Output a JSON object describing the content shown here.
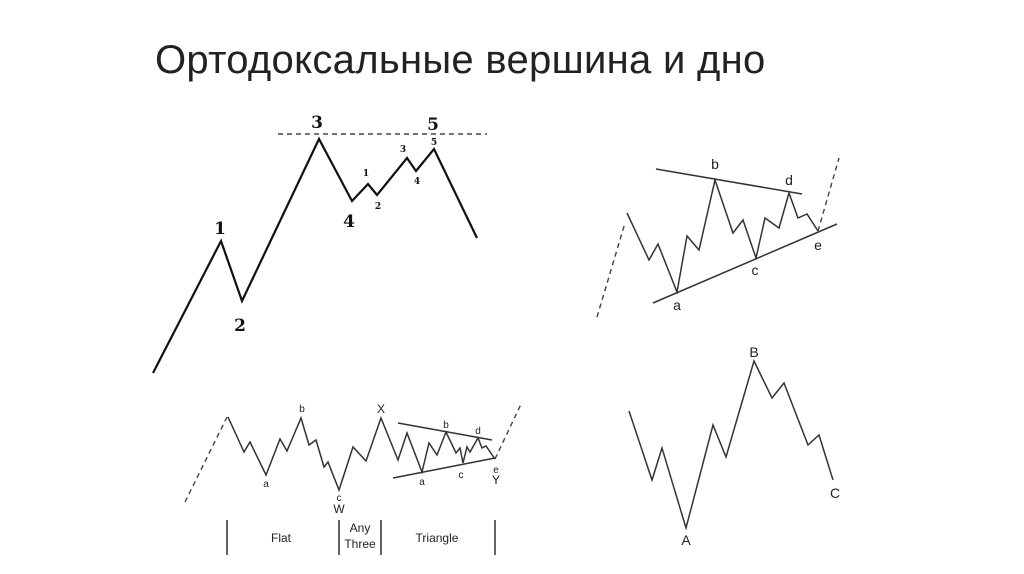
{
  "title": "Ортодоксальные вершина и дно",
  "impulse_top": {
    "labels": {
      "w1": "1",
      "w2": "2",
      "w3": "3",
      "w4": "4",
      "w5": "5",
      "s1": "1",
      "s2": "2",
      "s3": "3",
      "s4": "4",
      "s5": "5"
    }
  },
  "triangle": {
    "labels": {
      "a": "a",
      "b": "b",
      "c": "c",
      "d": "d",
      "e": "e"
    }
  },
  "zigzag": {
    "labels": {
      "A": "A",
      "B": "B",
      "C": "C"
    }
  },
  "combination": {
    "labels": {
      "a1": "a",
      "b1": "b",
      "c1": "c",
      "W": "W",
      "X": "X",
      "a2": "a",
      "b2": "b",
      "c2": "c",
      "d2": "d",
      "e2": "e",
      "Y": "Y"
    },
    "sections": {
      "flat": "Flat",
      "any_line1": "Any",
      "any_line2": "Three",
      "triangle": "Triangle"
    }
  }
}
